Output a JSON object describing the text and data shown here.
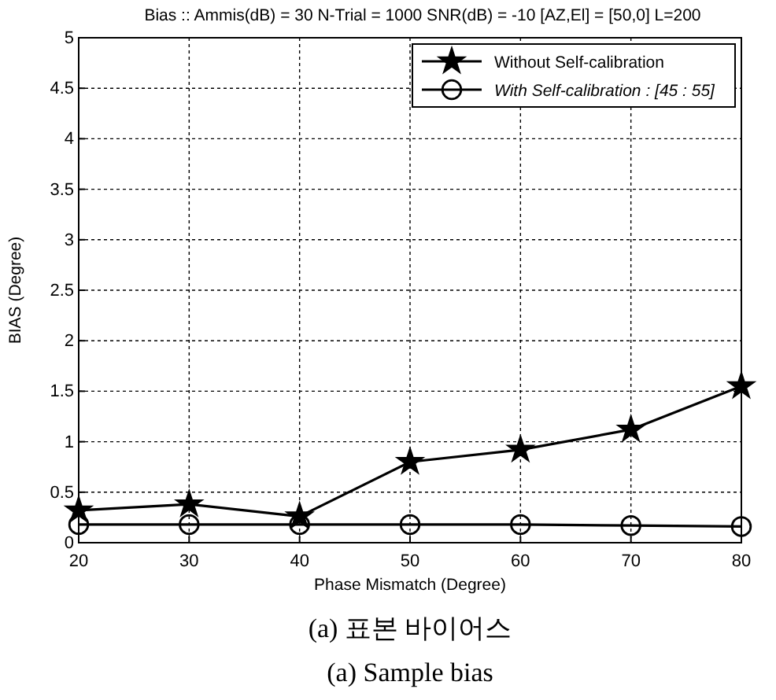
{
  "chart_data": {
    "type": "line",
    "title": "Bias :: Ammis(dB) = 30  N-Trial = 1000  SNR(dB) = -10  [AZ,El] = [50,0] L=200",
    "xlabel": "Phase Mismatch (Degree)",
    "ylabel": "BIAS (Degree)",
    "x": [
      20,
      30,
      40,
      50,
      60,
      70,
      80
    ],
    "xlim": [
      20,
      80
    ],
    "xticks": [
      20,
      30,
      40,
      50,
      60,
      70,
      80
    ],
    "ylim": [
      0,
      5
    ],
    "yticks": [
      0,
      0.5,
      1,
      1.5,
      2,
      2.5,
      3,
      3.5,
      4,
      4.5,
      5
    ],
    "grid": true,
    "legend": "top right",
    "line_style": "solid",
    "series": [
      {
        "name": "Without Self-calibration",
        "color": "#000000",
        "marker": "star",
        "values": [
          0.32,
          0.38,
          0.26,
          0.8,
          0.92,
          1.12,
          1.55
        ]
      },
      {
        "name": "With Self-calibration : [45 : 55]",
        "color": "#000000",
        "marker": "circle",
        "values": [
          0.18,
          0.18,
          0.18,
          0.18,
          0.18,
          0.17,
          0.16
        ]
      }
    ],
    "annotations": [
      "(a) 표본 바이어스",
      "(a) Sample bias"
    ]
  }
}
